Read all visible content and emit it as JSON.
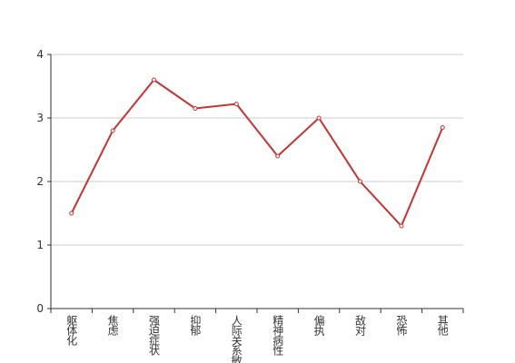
{
  "chart_data": {
    "type": "line",
    "categories": [
      "躯体化",
      "焦虑",
      "强迫症状",
      "抑郁",
      "人际关系敏感",
      "精神病性",
      "偏执",
      "敌对",
      "恐怖",
      "其他"
    ],
    "values": [
      1.5,
      2.8,
      3.6,
      3.15,
      3.22,
      2.4,
      3.0,
      2.0,
      1.3,
      2.85
    ],
    "color": "#c23531",
    "ylim": [
      0,
      4
    ],
    "yticks": [
      0,
      1,
      2,
      3,
      4
    ],
    "grid": true
  }
}
